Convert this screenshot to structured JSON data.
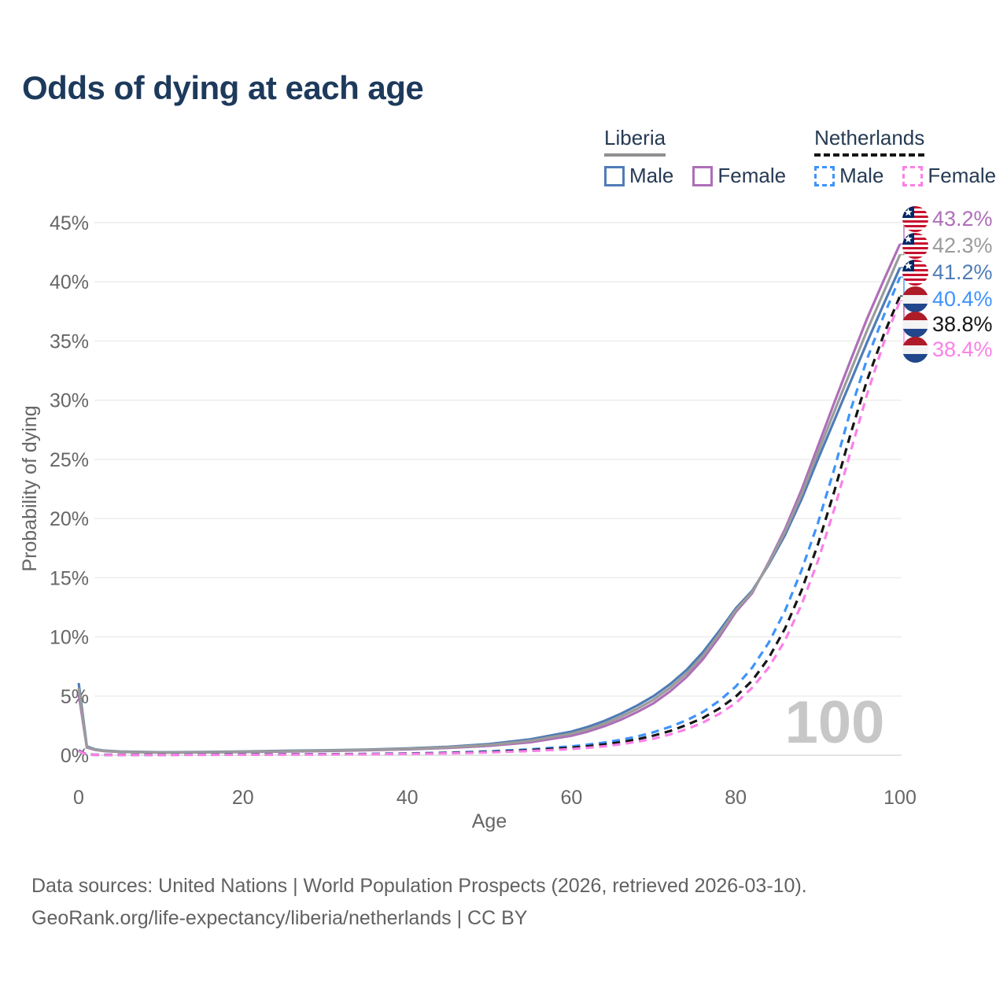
{
  "title": "Odds of dying at each age",
  "legend": {
    "groups": [
      {
        "label": "Liberia",
        "underline_style": "solid",
        "underline_color": "#909090",
        "items": [
          {
            "label": "Male",
            "color": "#4f7cb6",
            "dashed": false
          },
          {
            "label": "Female",
            "color": "#ae6fb8",
            "dashed": false
          }
        ]
      },
      {
        "label": "Netherlands",
        "underline_style": "dashed",
        "underline_color": "#161616",
        "items": [
          {
            "label": "Male",
            "color": "#3f93fb",
            "dashed": true
          },
          {
            "label": "Female",
            "color": "#fb80e8",
            "dashed": true
          }
        ]
      }
    ]
  },
  "y_axis": {
    "label": "Probability of dying",
    "ticks": [
      "0%",
      "5%",
      "10%",
      "15%",
      "20%",
      "25%",
      "30%",
      "35%",
      "40%",
      "45%"
    ]
  },
  "x_axis": {
    "label": "Age",
    "ticks": [
      0,
      20,
      40,
      60,
      80,
      100
    ]
  },
  "watermark": "100",
  "end_labels": [
    {
      "country": "liberia",
      "value": "43.2%",
      "color": "#ae6fb8",
      "series_index": 1
    },
    {
      "country": "liberia",
      "value": "42.3%",
      "color": "#9b9b9b",
      "series_index": 2
    },
    {
      "country": "liberia",
      "value": "41.2%",
      "color": "#4f7cb6",
      "series_index": 0
    },
    {
      "country": "netherlands",
      "value": "40.4%",
      "color": "#3f93fb",
      "series_index": 3
    },
    {
      "country": "netherlands",
      "value": "38.8%",
      "color": "#161616",
      "series_index": 4
    },
    {
      "country": "netherlands",
      "value": "38.4%",
      "color": "#fb80e8",
      "series_index": 5
    }
  ],
  "footer": {
    "line1": "Data sources: United Nations | World Population Prospects (2026, retrieved 2026-03-10).",
    "line2": "GeoRank.org/life-expectancy/liberia/netherlands | CC BY"
  },
  "chart_data": {
    "type": "line",
    "title": "Odds of dying at each age",
    "xlabel": "Age",
    "ylabel": "Probability of dying",
    "xlim": [
      0,
      100
    ],
    "ylim": [
      0,
      45
    ],
    "y_unit": "percent",
    "grid": "horizontal",
    "legend_position": "top-right",
    "x": [
      0,
      1,
      2,
      3,
      5,
      10,
      15,
      20,
      25,
      30,
      35,
      40,
      45,
      50,
      55,
      60,
      62,
      64,
      66,
      68,
      70,
      72,
      74,
      76,
      78,
      80,
      82,
      84,
      86,
      88,
      90,
      92,
      94,
      96,
      98,
      100
    ],
    "series": [
      {
        "name": "Liberia Male",
        "color": "#4f7cb6",
        "style": "solid",
        "end_label": "41.2%",
        "values": [
          6.1,
          0.75,
          0.5,
          0.4,
          0.32,
          0.25,
          0.28,
          0.32,
          0.37,
          0.42,
          0.48,
          0.58,
          0.72,
          0.95,
          1.35,
          2.0,
          2.4,
          2.9,
          3.5,
          4.2,
          5.0,
          6.0,
          7.2,
          8.7,
          10.5,
          12.4,
          13.9,
          16.1,
          18.6,
          21.6,
          25.0,
          28.3,
          31.6,
          34.9,
          38.1,
          41.2
        ]
      },
      {
        "name": "Liberia Female",
        "color": "#ae6fb8",
        "style": "solid",
        "end_label": "43.2%",
        "values": [
          5.2,
          0.65,
          0.45,
          0.36,
          0.28,
          0.22,
          0.24,
          0.27,
          0.31,
          0.36,
          0.42,
          0.5,
          0.62,
          0.8,
          1.1,
          1.65,
          2.0,
          2.45,
          3.0,
          3.65,
          4.4,
          5.4,
          6.6,
          8.1,
          10.0,
          12.1,
          13.7,
          16.3,
          19.1,
          22.4,
          26.1,
          29.8,
          33.4,
          36.9,
          40.1,
          43.2
        ]
      },
      {
        "name": "Liberia",
        "color": "#9b9b9b",
        "style": "solid",
        "end_label": "42.3%",
        "values": [
          5.7,
          0.7,
          0.47,
          0.38,
          0.3,
          0.23,
          0.26,
          0.3,
          0.34,
          0.39,
          0.45,
          0.54,
          0.67,
          0.87,
          1.22,
          1.82,
          2.2,
          2.67,
          3.25,
          3.92,
          4.7,
          5.7,
          6.9,
          8.4,
          10.25,
          12.25,
          13.8,
          16.2,
          18.85,
          22.0,
          25.55,
          29.05,
          32.5,
          35.9,
          39.1,
          42.3
        ]
      },
      {
        "name": "Netherlands Male",
        "color": "#3f93fb",
        "style": "dashed",
        "end_label": "40.4%",
        "values": [
          0.42,
          0.05,
          0.04,
          0.03,
          0.03,
          0.03,
          0.05,
          0.07,
          0.08,
          0.09,
          0.11,
          0.15,
          0.22,
          0.33,
          0.5,
          0.75,
          0.9,
          1.08,
          1.3,
          1.58,
          1.95,
          2.4,
          2.95,
          3.65,
          4.6,
          5.8,
          7.4,
          9.5,
          12.2,
          15.6,
          19.6,
          24.2,
          29.2,
          33.5,
          37.1,
          40.4
        ]
      },
      {
        "name": "Netherlands",
        "color": "#161616",
        "style": "dashed",
        "end_label": "38.8%",
        "values": [
          0.4,
          0.05,
          0.03,
          0.03,
          0.03,
          0.03,
          0.04,
          0.06,
          0.07,
          0.08,
          0.1,
          0.13,
          0.19,
          0.28,
          0.43,
          0.63,
          0.76,
          0.92,
          1.1,
          1.35,
          1.66,
          2.05,
          2.55,
          3.15,
          3.95,
          4.95,
          6.3,
          8.2,
          10.7,
          13.9,
          17.8,
          22.3,
          27.2,
          31.7,
          35.5,
          38.8
        ]
      },
      {
        "name": "Netherlands Female",
        "color": "#fb80e8",
        "style": "dashed",
        "end_label": "38.4%",
        "values": [
          0.37,
          0.04,
          0.03,
          0.02,
          0.02,
          0.02,
          0.03,
          0.04,
          0.05,
          0.06,
          0.08,
          0.11,
          0.16,
          0.24,
          0.36,
          0.52,
          0.63,
          0.76,
          0.93,
          1.14,
          1.4,
          1.76,
          2.2,
          2.76,
          3.5,
          4.4,
          5.7,
          7.4,
          9.7,
          12.7,
          16.4,
          20.8,
          25.7,
          30.5,
          34.8,
          38.4
        ]
      }
    ]
  }
}
